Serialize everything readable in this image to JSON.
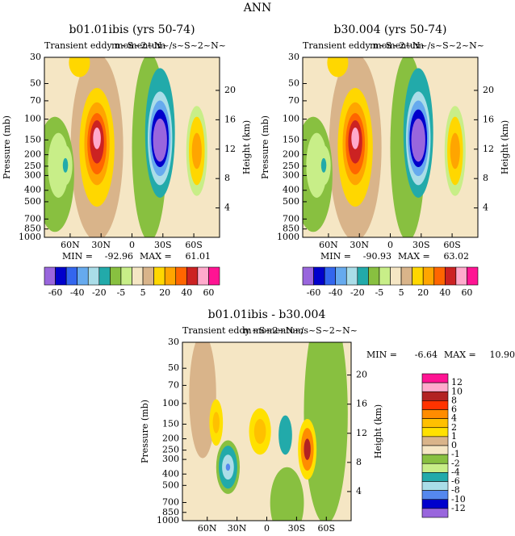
{
  "title": "ANN",
  "chart_data": [
    {
      "type": "contour",
      "title": "b01.01ibis (yrs 50-74)",
      "subtitle_left": "Transient eddy momentum",
      "subtitle_right": "m~S~2~N~/s~S~2~N~",
      "ylabel": "Pressure (mb)",
      "y2label": "Height (km)",
      "xlim": [
        85,
        -85
      ],
      "xticks": [
        {
          "value": 60,
          "label": "60N"
        },
        {
          "value": 30,
          "label": "30N"
        },
        0,
        {
          "value": -30,
          "label": "30S"
        },
        {
          "value": -60,
          "label": "60S"
        }
      ],
      "ylim": [
        1000,
        30
      ],
      "log_y": true,
      "yticks": [
        30,
        50,
        70,
        100,
        150,
        200,
        250,
        300,
        400,
        500,
        700,
        850,
        1000
      ],
      "y2lim": [
        0,
        24.5
      ],
      "y2ticks": [
        4,
        8,
        12,
        16,
        20
      ],
      "stats": [
        {
          "label": "MIN =",
          "value": -92.96
        },
        {
          "label": "MAX =",
          "value": 61.01
        }
      ],
      "colorbar": {
        "orientation": "horizontal",
        "colors": [
          "#9966dd",
          "#0000cc",
          "#3366ee",
          "#66aaee",
          "#aadde8",
          "#22aaaa",
          "#88c040",
          "#c8ee88",
          "#f5e6c4",
          "#d9b48a",
          "#ffd700",
          "#ffa500",
          "#ff6600",
          "#cc2222",
          "#ffaacc",
          "#ff1493"
        ],
        "labels": [
          -60,
          -40,
          -20,
          -5,
          5,
          20,
          40,
          60
        ]
      }
    },
    {
      "type": "contour",
      "title": "b30.004 (yrs 50-74)",
      "subtitle_left": "Transient eddy momentum",
      "subtitle_right": "m~S~2~N~/s~S~2~N~",
      "ylabel": "Pressure (mb)",
      "y2label": "Height (km)",
      "xlim": [
        85,
        -85
      ],
      "xticks": [
        {
          "value": 60,
          "label": "60N"
        },
        {
          "value": 30,
          "label": "30N"
        },
        0,
        {
          "value": -30,
          "label": "30S"
        },
        {
          "value": -60,
          "label": "60S"
        }
      ],
      "ylim": [
        1000,
        30
      ],
      "log_y": true,
      "yticks": [
        30,
        50,
        70,
        100,
        150,
        200,
        250,
        300,
        400,
        500,
        700,
        850,
        1000
      ],
      "y2lim": [
        0,
        24.5
      ],
      "y2ticks": [
        4,
        8,
        12,
        16,
        20
      ],
      "stats": [
        {
          "label": "MIN =",
          "value": -90.93
        },
        {
          "label": "MAX =",
          "value": 63.02
        }
      ],
      "colorbar": {
        "orientation": "horizontal",
        "colors": [
          "#9966dd",
          "#0000cc",
          "#3366ee",
          "#66aaee",
          "#aadde8",
          "#22aaaa",
          "#88c040",
          "#c8ee88",
          "#f5e6c4",
          "#d9b48a",
          "#ffd700",
          "#ffa500",
          "#ff6600",
          "#cc2222",
          "#ffaacc",
          "#ff1493"
        ],
        "labels": [
          -60,
          -40,
          -20,
          -5,
          5,
          20,
          40,
          60
        ]
      }
    },
    {
      "type": "contour",
      "title": "b01.01ibis - b30.004",
      "subtitle_left": "Transient eddy momentum",
      "subtitle_right": "m~S~2~N~/s~S~2~N~",
      "ylabel": "Pressure (mb)",
      "y2label": "Height (km)",
      "xlim": [
        85,
        -85
      ],
      "xticks": [
        {
          "value": 60,
          "label": "60N"
        },
        {
          "value": 30,
          "label": "30N"
        },
        0,
        {
          "value": -30,
          "label": "30S"
        },
        {
          "value": -60,
          "label": "60S"
        }
      ],
      "ylim": [
        1000,
        30
      ],
      "log_y": true,
      "yticks": [
        30,
        50,
        70,
        100,
        150,
        200,
        250,
        300,
        400,
        500,
        700,
        850,
        1000
      ],
      "y2lim": [
        0,
        24.5
      ],
      "y2ticks": [
        4,
        8,
        12,
        16,
        20
      ],
      "stats": [
        {
          "label": "MIN =",
          "value": -6.64
        },
        {
          "label": "MAX =",
          "value": 10.9,
          "value_label": "10.90"
        }
      ],
      "colorbar": {
        "orientation": "vertical",
        "colors": [
          "#ff1493",
          "#ffaacc",
          "#b22222",
          "#ff3300",
          "#ff8c00",
          "#ffc000",
          "#ffe100",
          "#d9b48a",
          "#f5e6c4",
          "#88c040",
          "#c8ee88",
          "#22aaaa",
          "#aadde8",
          "#5588ee",
          "#0000cc",
          "#9966dd"
        ],
        "labels": [
          12,
          10,
          8,
          6,
          4,
          2,
          1,
          0,
          -1,
          -2,
          -4,
          -6,
          -8,
          -10,
          -12
        ]
      }
    }
  ]
}
